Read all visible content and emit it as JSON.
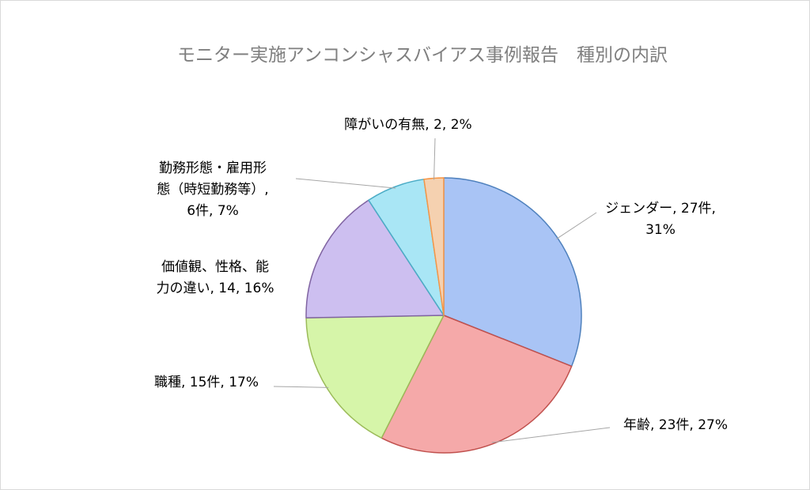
{
  "chart_data": {
    "type": "pie",
    "title": "モニター実施アンコンシャスバイアス事例報告　種別の内訳",
    "categories": [
      "ジェンダー",
      "年齢",
      "職種",
      "価値観、性格、能力の違い",
      "勤務形態・雇用形態（時短勤務等）",
      "障がいの有無"
    ],
    "values": [
      27,
      23,
      15,
      14,
      6,
      2
    ],
    "percents": [
      "31%",
      "27%",
      "17%",
      "16%",
      "7%",
      "2%"
    ],
    "data_labels": [
      [
        "ジェンダー, 27件,",
        "31%"
      ],
      [
        "年齢, 23件, 27%"
      ],
      [
        "職種, 15件, 17%"
      ],
      [
        "価値観、性格、能",
        "力の違い, 14, 16%"
      ],
      [
        "勤務形態・雇用形",
        "態（時短勤務等）,",
        "6件, 7%"
      ],
      [
        "障がいの有無, 2, 2%"
      ]
    ],
    "colors": [
      "#a9c4f5",
      "#f5a9a9",
      "#d6f5a9",
      "#cdbff0",
      "#a9e6f5",
      "#f5d1b0"
    ],
    "edge_colors": [
      "#4f81bd",
      "#c0504d",
      "#9bbb59",
      "#8064a2",
      "#4bacc6",
      "#f79646"
    ],
    "legend": "none"
  }
}
